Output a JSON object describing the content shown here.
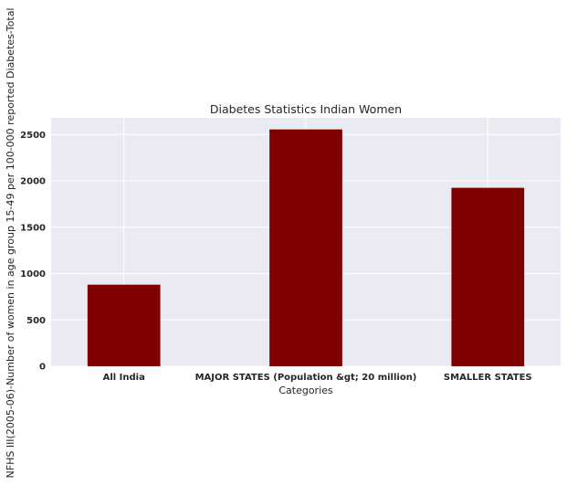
{
  "chart_data": {
    "type": "bar",
    "title": "Diabetes Statistics Indian Women",
    "xlabel": "Categories",
    "ylabel": "NFHS III(2005-06)-Number of women in age group 15-49 per 100-000 reported Diabetes-Total",
    "categories": [
      "All India",
      "MAJOR STATES (Population &gt; 20 million)",
      "SMALLER STATES"
    ],
    "values": [
      880,
      2555,
      1925
    ],
    "ylim": [
      0,
      2680
    ],
    "yticks": [
      0,
      500,
      1000,
      1500,
      2000,
      2500
    ],
    "grid": true,
    "bar_color": "#7f0000",
    "plot_background": "#eaeaf2",
    "grid_color": "#ffffff"
  }
}
